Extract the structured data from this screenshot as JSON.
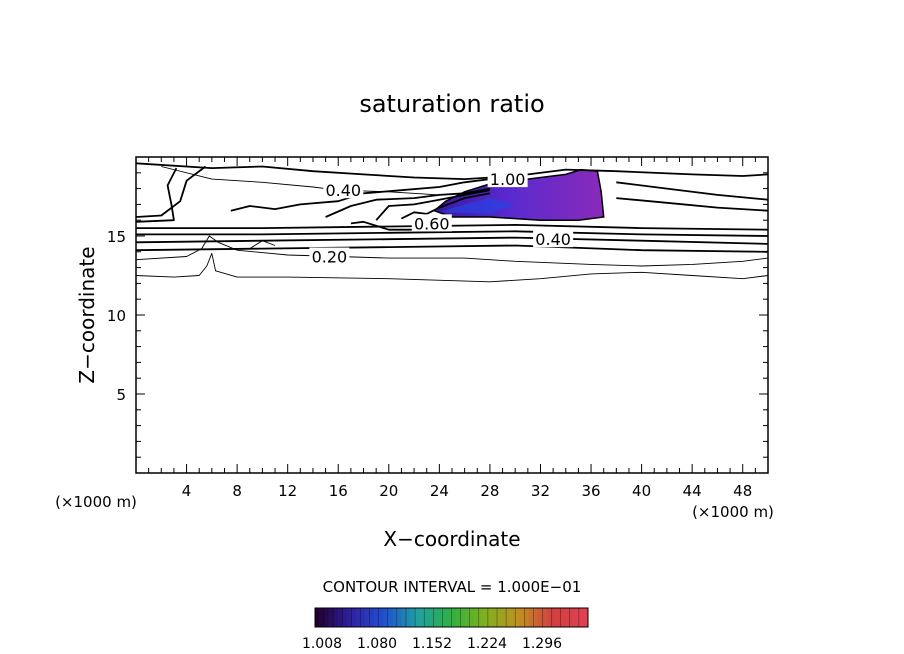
{
  "chart_data": {
    "type": "contour",
    "title": "saturation ratio",
    "xlabel": "X−coordinate",
    "ylabel": "Z−coordinate",
    "x_unit": "(×1000 m)",
    "y_unit": "(×1000 m)",
    "xlim": [
      0,
      50
    ],
    "ylim": [
      0,
      20
    ],
    "x_ticks": [
      4,
      8,
      12,
      16,
      20,
      24,
      28,
      32,
      36,
      40,
      44,
      48
    ],
    "y_ticks": [
      5,
      10,
      15
    ],
    "contour_interval_text": "CONTOUR INTERVAL = 1.000E−01",
    "contour_labels": [
      {
        "text": "0.40",
        "x": 16.4,
        "y": 17.9
      },
      {
        "text": "1.00",
        "x": 29.4,
        "y": 18.6
      },
      {
        "text": "0.60",
        "x": 23.4,
        "y": 15.8
      },
      {
        "text": "0.40",
        "x": 33.0,
        "y": 14.8
      },
      {
        "text": "0.20",
        "x": 15.3,
        "y": 13.7
      }
    ],
    "contours": [
      {
        "level": 0.2,
        "points": [
          [
            0,
            12.5
          ],
          [
            3,
            12.4
          ],
          [
            5,
            12.5
          ],
          [
            5.6,
            13.1
          ],
          [
            6,
            13.9
          ],
          [
            6.3,
            12.8
          ],
          [
            8,
            12.4
          ],
          [
            12,
            12.4
          ],
          [
            20,
            12.3
          ],
          [
            28,
            12.1
          ],
          [
            32,
            12.3
          ],
          [
            36,
            12.6
          ],
          [
            40,
            12.7
          ],
          [
            44,
            12.5
          ],
          [
            48,
            12.3
          ],
          [
            50,
            12.5
          ]
        ]
      },
      {
        "level": 0.3,
        "points": [
          [
            0,
            13.5
          ],
          [
            4,
            13.7
          ],
          [
            5.2,
            14.2
          ],
          [
            5.8,
            15.0
          ],
          [
            6.5,
            14.6
          ],
          [
            8,
            14.1
          ],
          [
            12,
            13.8
          ],
          [
            16,
            13.7
          ],
          [
            20,
            13.6
          ],
          [
            26,
            13.6
          ],
          [
            30,
            13.4
          ],
          [
            36,
            13.2
          ],
          [
            40,
            13.1
          ],
          [
            44,
            13.2
          ],
          [
            48,
            13.4
          ],
          [
            50,
            13.6
          ]
        ]
      },
      {
        "level": 0.4,
        "points": [
          [
            0,
            14.1
          ],
          [
            10,
            14.2
          ],
          [
            20,
            14.3
          ],
          [
            30,
            14.4
          ],
          [
            40,
            14.1
          ],
          [
            50,
            14.0
          ]
        ]
      },
      {
        "level": 0.5,
        "points": [
          [
            0,
            14.6
          ],
          [
            10,
            14.7
          ],
          [
            20,
            14.8
          ],
          [
            30,
            14.9
          ],
          [
            40,
            14.7
          ],
          [
            50,
            14.5
          ]
        ]
      },
      {
        "level": 0.6,
        "points": [
          [
            0,
            15.1
          ],
          [
            10,
            15.1
          ],
          [
            20,
            15.2
          ],
          [
            30,
            15.3
          ],
          [
            40,
            15.1
          ],
          [
            50,
            15.0
          ]
        ]
      },
      {
        "level": 0.7,
        "points": [
          [
            0,
            15.5
          ],
          [
            10,
            15.5
          ],
          [
            20,
            15.6
          ],
          [
            30,
            15.7
          ],
          [
            40,
            15.5
          ],
          [
            50,
            15.4
          ]
        ]
      },
      {
        "level": 0.8,
        "points": [
          [
            0,
            15.9
          ],
          [
            3,
            16.0
          ],
          [
            2.8,
            17.0
          ],
          [
            2.5,
            18.2
          ],
          [
            3.2,
            19.3
          ]
        ]
      },
      {
        "level": 0.9,
        "points": [
          [
            0,
            16.2
          ],
          [
            2,
            16.3
          ],
          [
            3.5,
            17.2
          ],
          [
            4,
            18.5
          ],
          [
            5.5,
            19.4
          ]
        ]
      },
      {
        "level": 0.4,
        "points": [
          [
            0,
            19.6
          ],
          [
            6,
            19.3
          ],
          [
            10,
            19.4
          ],
          [
            14,
            19.1
          ],
          [
            18,
            18.9
          ],
          [
            22,
            18.7
          ],
          [
            26,
            18.6
          ],
          [
            30,
            18.8
          ],
          [
            34,
            19.2
          ],
          [
            38,
            19.1
          ],
          [
            44,
            18.9
          ],
          [
            48,
            18.8
          ],
          [
            50,
            18.9
          ]
        ]
      },
      {
        "level": 0.5,
        "points": [
          [
            38,
            18.4
          ],
          [
            42,
            18.0
          ],
          [
            46,
            17.6
          ],
          [
            50,
            17.3
          ]
        ]
      },
      {
        "level": 0.6,
        "points": [
          [
            38,
            17.4
          ],
          [
            42,
            17.1
          ],
          [
            46,
            16.8
          ],
          [
            50,
            16.6
          ]
        ]
      },
      {
        "level": 0.3,
        "points": [
          [
            2,
            19.4
          ],
          [
            6,
            18.6
          ],
          [
            10,
            18.4
          ],
          [
            14,
            18.1
          ],
          [
            16,
            17.9
          ],
          [
            20,
            17.8
          ],
          [
            24,
            17.6
          ]
        ]
      },
      {
        "level": 0.5,
        "points": [
          [
            7.5,
            16.6
          ],
          [
            9,
            16.9
          ],
          [
            11,
            16.7
          ],
          [
            13,
            17.0
          ],
          [
            16,
            17.2
          ],
          [
            18,
            17.7
          ],
          [
            21,
            17.9
          ],
          [
            24,
            18.1
          ],
          [
            26,
            18.4
          ],
          [
            28,
            18.6
          ]
        ]
      },
      {
        "level": 0.6,
        "points": [
          [
            15,
            16.2
          ],
          [
            17,
            16.9
          ],
          [
            19,
            17.3
          ],
          [
            22,
            17.4
          ],
          [
            24,
            17.6
          ],
          [
            26,
            17.7
          ],
          [
            28,
            18.0
          ]
        ]
      },
      {
        "level": 0.7,
        "points": [
          [
            19,
            16.0
          ],
          [
            20,
            16.9
          ],
          [
            22,
            17.0
          ],
          [
            24,
            17.3
          ],
          [
            26,
            17.6
          ],
          [
            28,
            17.9
          ]
        ]
      },
      {
        "level": 0.8,
        "points": [
          [
            21,
            16.1
          ],
          [
            22,
            16.5
          ],
          [
            23,
            16.4
          ],
          [
            24,
            16.8
          ],
          [
            26,
            17.4
          ],
          [
            28,
            17.7
          ]
        ]
      },
      {
        "level": 0.2,
        "points": [
          [
            9,
            14.2
          ],
          [
            10,
            14.7
          ],
          [
            11,
            14.4
          ]
        ]
      },
      {
        "level": 0.4,
        "points": [
          [
            17,
            15.8
          ],
          [
            18,
            15.9
          ],
          [
            20,
            15.4
          ],
          [
            22,
            15.4
          ]
        ]
      }
    ],
    "fill_region": {
      "level": 1.0,
      "points": [
        [
          23.6,
          16.6
        ],
        [
          24.5,
          17.2
        ],
        [
          26,
          17.8
        ],
        [
          28,
          18.3
        ],
        [
          30,
          18.5
        ],
        [
          32,
          18.7
        ],
        [
          34,
          18.9
        ],
        [
          35.2,
          19.2
        ],
        [
          36.5,
          19.1
        ],
        [
          36.8,
          17.8
        ],
        [
          37,
          16.2
        ],
        [
          35,
          16.0
        ],
        [
          32,
          16.0
        ],
        [
          28,
          16.2
        ],
        [
          25,
          16.2
        ]
      ]
    },
    "fill_inner": {
      "points": [
        [
          24,
          16.5
        ],
        [
          26,
          17.0
        ],
        [
          28,
          17.4
        ],
        [
          30,
          17.0
        ],
        [
          28,
          16.4
        ]
      ]
    },
    "colorbar": {
      "ticks": [
        "1.008",
        "1.080",
        "1.152",
        "1.224",
        "1.296"
      ],
      "stops": [
        "#200030",
        "#3020a0",
        "#2050d0",
        "#20a0a0",
        "#30b040",
        "#80b020",
        "#c09020",
        "#d04040",
        "#e04050"
      ]
    }
  }
}
